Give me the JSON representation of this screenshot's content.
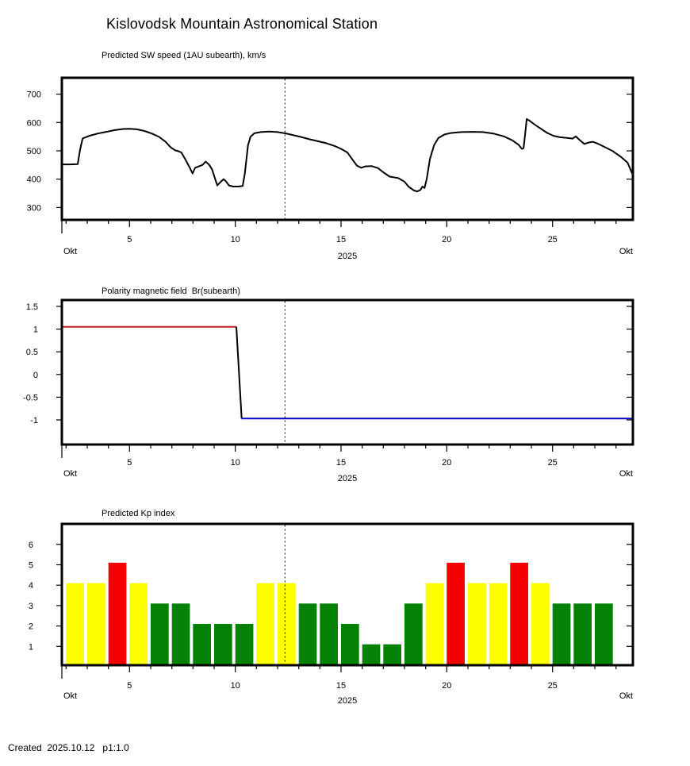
{
  "page": {
    "title": "Kislovodsk Mountain Astronomical Station",
    "footer": "Created  2025.10.12   p1:1.0"
  },
  "colors": {
    "frame": "#000000",
    "sw_line": "#000000",
    "polarity_positive": "#b22020",
    "polarity_negative": "#0000cc",
    "polarity_transition": "#000000",
    "kp_quiet": "#058205",
    "kp_active": "#ffff00",
    "kp_storm": "#f50000",
    "dashed_marker": "#000000"
  },
  "chart_data": [
    {
      "type": "line",
      "title": "Predicted SW speed (1AU subearth), km/s",
      "ylabel": "km/s",
      "yticks": [
        700,
        600,
        500,
        400,
        300
      ],
      "ylim": [
        256,
        758
      ],
      "xticks": [
        5,
        10,
        15,
        20,
        25
      ],
      "x_range_days": [
        1.8,
        28.8
      ],
      "month_label": "Okt",
      "year_label": "2025",
      "marker_day": 12.35,
      "series": [
        {
          "name": "predicted-sw-speed",
          "color": "#000000",
          "points": [
            [
              1.8,
              452
            ],
            [
              2.2,
              452
            ],
            [
              2.55,
              453
            ],
            [
              2.65,
              500
            ],
            [
              2.78,
              543
            ],
            [
              3.1,
              553
            ],
            [
              3.5,
              561
            ],
            [
              3.9,
              567
            ],
            [
              4.3,
              573
            ],
            [
              4.7,
              577
            ],
            [
              5.0,
              578
            ],
            [
              5.35,
              576
            ],
            [
              5.7,
              570
            ],
            [
              6.05,
              561
            ],
            [
              6.4,
              549
            ],
            [
              6.7,
              532
            ],
            [
              6.95,
              512
            ],
            [
              7.15,
              502
            ],
            [
              7.3,
              499
            ],
            [
              7.45,
              494
            ],
            [
              7.65,
              468
            ],
            [
              7.85,
              440
            ],
            [
              7.98,
              420
            ],
            [
              8.1,
              440
            ],
            [
              8.3,
              446
            ],
            [
              8.45,
              450
            ],
            [
              8.6,
              462
            ],
            [
              8.75,
              452
            ],
            [
              8.9,
              435
            ],
            [
              9.06,
              398
            ],
            [
              9.15,
              378
            ],
            [
              9.3,
              390
            ],
            [
              9.45,
              400
            ],
            [
              9.55,
              393
            ],
            [
              9.7,
              378
            ],
            [
              9.9,
              374
            ],
            [
              10.15,
              374
            ],
            [
              10.35,
              376
            ],
            [
              10.45,
              420
            ],
            [
              10.6,
              520
            ],
            [
              10.72,
              550
            ],
            [
              10.9,
              562
            ],
            [
              11.2,
              566
            ],
            [
              11.6,
              568
            ],
            [
              12.0,
              566
            ],
            [
              12.35,
              562
            ],
            [
              12.7,
              556
            ],
            [
              13.1,
              549
            ],
            [
              13.5,
              541
            ],
            [
              13.9,
              534
            ],
            [
              14.3,
              527
            ],
            [
              14.7,
              517
            ],
            [
              15.05,
              505
            ],
            [
              15.3,
              494
            ],
            [
              15.55,
              468
            ],
            [
              15.75,
              448
            ],
            [
              15.95,
              440
            ],
            [
              16.15,
              445
            ],
            [
              16.45,
              446
            ],
            [
              16.75,
              439
            ],
            [
              17.0,
              424
            ],
            [
              17.3,
              409
            ],
            [
              17.7,
              404
            ],
            [
              18.0,
              391
            ],
            [
              18.2,
              373
            ],
            [
              18.45,
              360
            ],
            [
              18.6,
              357
            ],
            [
              18.75,
              362
            ],
            [
              18.85,
              374
            ],
            [
              18.95,
              369
            ],
            [
              19.05,
              400
            ],
            [
              19.2,
              470
            ],
            [
              19.4,
              520
            ],
            [
              19.6,
              545
            ],
            [
              19.9,
              558
            ],
            [
              20.2,
              563
            ],
            [
              20.7,
              566
            ],
            [
              21.2,
              567
            ],
            [
              21.7,
              566
            ],
            [
              22.2,
              561
            ],
            [
              22.7,
              551
            ],
            [
              23.1,
              537
            ],
            [
              23.4,
              521
            ],
            [
              23.55,
              507
            ],
            [
              23.63,
              509
            ],
            [
              23.7,
              555
            ],
            [
              23.78,
              612
            ],
            [
              23.9,
              607
            ],
            [
              24.15,
              593
            ],
            [
              24.45,
              578
            ],
            [
              24.75,
              563
            ],
            [
              25.05,
              553
            ],
            [
              25.35,
              548
            ],
            [
              25.65,
              546
            ],
            [
              25.95,
              543
            ],
            [
              26.1,
              551
            ],
            [
              26.3,
              537
            ],
            [
              26.5,
              524
            ],
            [
              26.7,
              529
            ],
            [
              26.9,
              532
            ],
            [
              27.15,
              525
            ],
            [
              27.45,
              514
            ],
            [
              27.85,
              499
            ],
            [
              28.25,
              478
            ],
            [
              28.55,
              458
            ],
            [
              28.8,
              414
            ]
          ]
        }
      ]
    },
    {
      "type": "line",
      "title": "Polarity magnetic field  Br(subearth)",
      "yticks": [
        1.5,
        1,
        0.5,
        0,
        -0.5,
        -1
      ],
      "ylim": [
        -1.55,
        1.64
      ],
      "xticks": [
        5,
        10,
        15,
        20,
        25
      ],
      "x_range_days": [
        1.8,
        28.8
      ],
      "month_label": "Okt",
      "year_label": "2025",
      "marker_day": 12.35,
      "segments": [
        {
          "name": "positive-polarity",
          "color": "#b22020",
          "points": [
            [
              1.8,
              1.05
            ],
            [
              10.05,
              1.05
            ]
          ]
        },
        {
          "name": "polarity-transition",
          "color": "#000000",
          "points": [
            [
              10.05,
              1.05
            ],
            [
              10.3,
              -0.97
            ]
          ]
        },
        {
          "name": "negative-polarity",
          "color": "#0000cc",
          "points": [
            [
              10.3,
              -0.97
            ],
            [
              28.8,
              -0.97
            ]
          ]
        }
      ]
    },
    {
      "type": "bar",
      "title": "Predicted Kp index",
      "yticks": [
        6,
        5,
        4,
        3,
        2,
        1
      ],
      "ylim": [
        0,
        7
      ],
      "xticks": [
        5,
        10,
        15,
        20,
        25
      ],
      "x_range_days": [
        1.8,
        28.8
      ],
      "month_label": "Okt",
      "year_label": "2025",
      "marker_day": 12.35,
      "bar_width_days": 0.85,
      "categories": [
        2,
        3,
        4,
        5,
        6,
        7,
        8,
        9,
        10,
        11,
        12,
        13,
        14,
        15,
        16,
        17,
        18,
        19,
        20,
        21,
        22,
        23,
        24,
        25,
        26,
        27
      ],
      "values": [
        4.1,
        4.1,
        5.1,
        4.1,
        3.1,
        3.1,
        2.1,
        2.1,
        2.1,
        4.1,
        4.1,
        3.1,
        3.1,
        2.1,
        1.1,
        1.1,
        3.1,
        4.1,
        5.1,
        4.1,
        4.1,
        5.1,
        4.1,
        3.1,
        3.1,
        3.1
      ],
      "color_rule": {
        "storm_min": 5,
        "active_min": 4
      }
    }
  ]
}
